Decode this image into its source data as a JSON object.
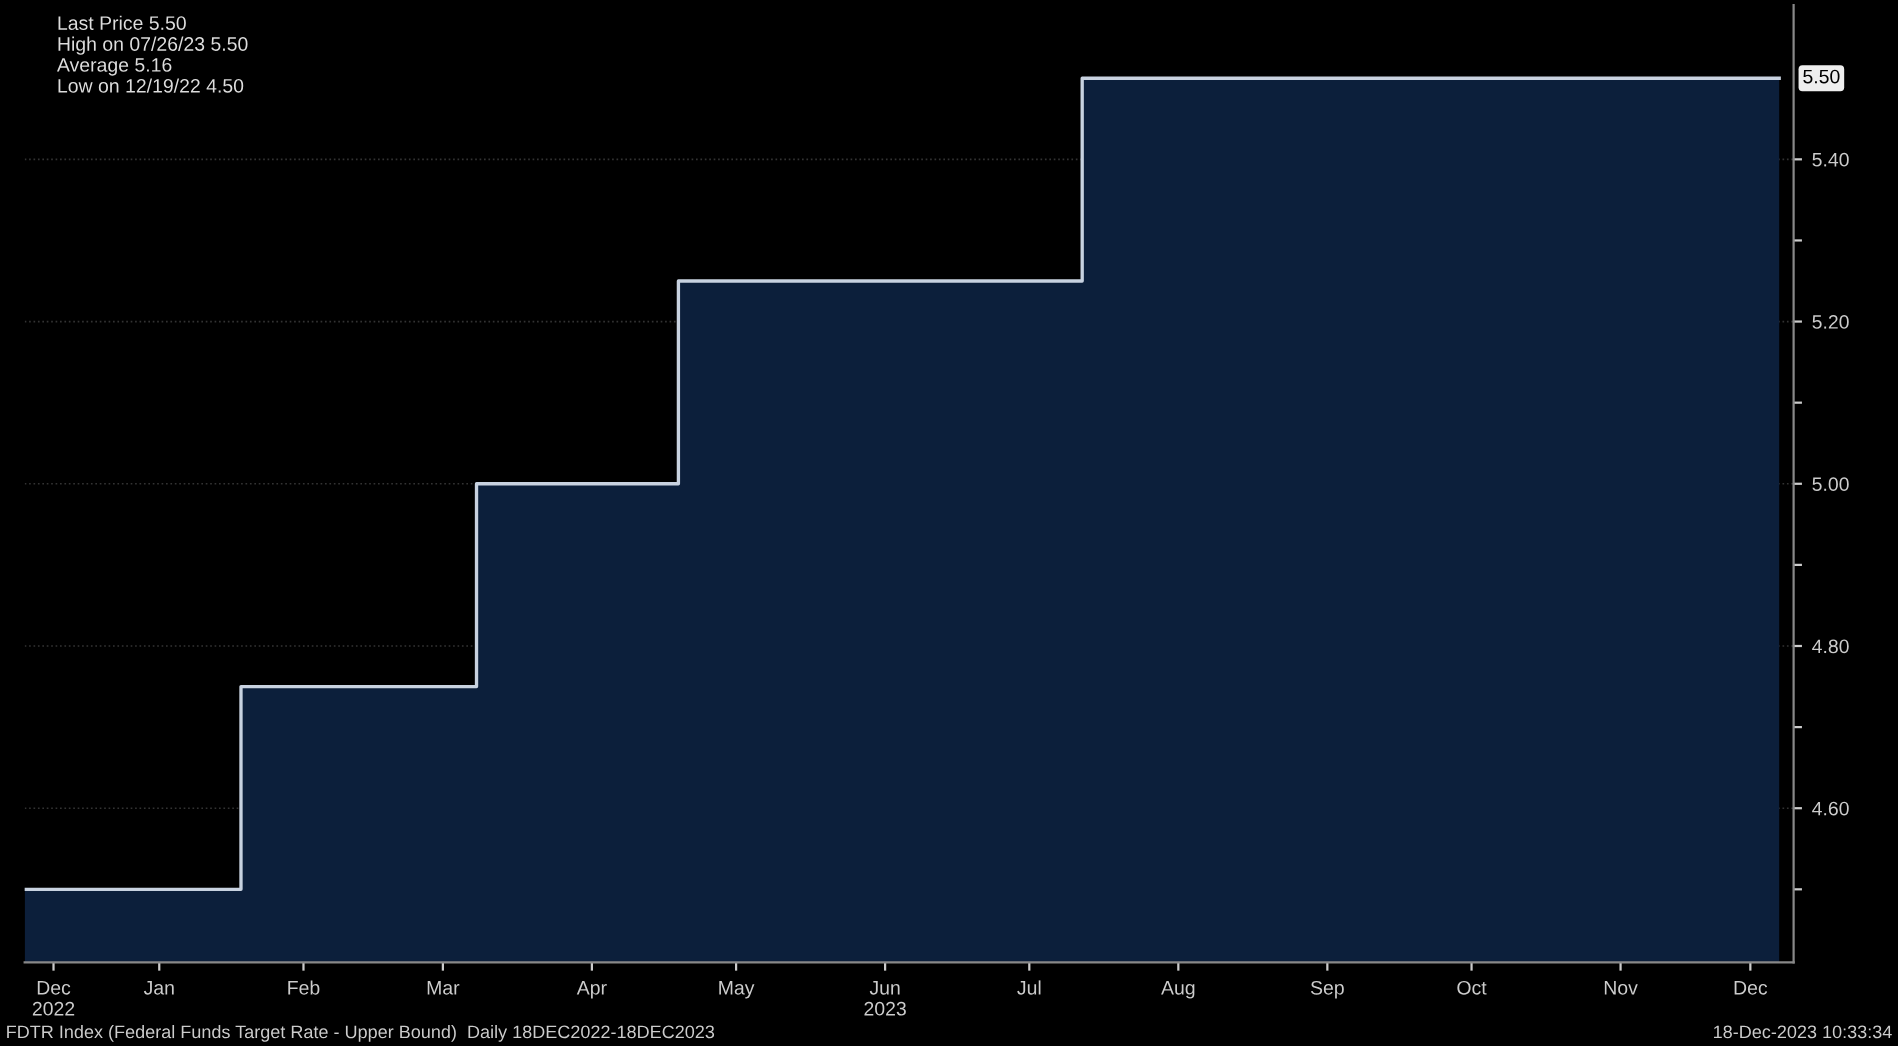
{
  "chart_data": {
    "type": "area",
    "x": [
      "2022-12-18",
      "2023-02-01",
      "2023-03-22",
      "2023-05-03",
      "2023-07-26",
      "2023-12-18"
    ],
    "series": [
      {
        "color": "#0c1f3b",
        "values": [
          4.5,
          4.75,
          5.0,
          5.25,
          5.5,
          5.5
        ]
      },
      {
        "type": "step",
        "color": "#c8d2e0",
        "values": [
          4.5,
          4.75,
          5.0,
          5.25,
          5.5,
          5.5
        ]
      }
    ],
    "xlim": [
      "2022-12-18",
      "2023-12-21"
    ],
    "xticks": [
      {
        "value": "2022-12-24",
        "label": "Dec\n2022"
      },
      {
        "value": "2023-01-15",
        "label": "Jan"
      },
      {
        "value": "2023-02-14",
        "label": "Feb"
      },
      {
        "value": "2023-03-15",
        "label": "Mar"
      },
      {
        "value": "2023-04-15",
        "label": "Apr"
      },
      {
        "value": "2023-05-15",
        "label": "May"
      },
      {
        "value": "2023-06-15",
        "label": "Jun\n2023"
      },
      {
        "value": "2023-07-15",
        "label": "Jul"
      },
      {
        "value": "2023-08-15",
        "label": "Aug"
      },
      {
        "value": "2023-09-15",
        "label": "Sep"
      },
      {
        "value": "2023-10-15",
        "label": "Oct"
      },
      {
        "value": "2023-11-15",
        "label": "Nov"
      },
      {
        "value": "2023-12-12",
        "label": "Dec"
      }
    ],
    "ylim": [
      4.41,
      5.59
    ],
    "yticks": [
      {
        "value": 4.5,
        "label": null
      },
      {
        "value": 4.6,
        "label": "4.60"
      },
      {
        "value": 4.7,
        "label": null
      },
      {
        "value": 4.8,
        "label": "4.80"
      },
      {
        "value": 4.9,
        "label": null
      },
      {
        "value": 5.0,
        "label": "5.00"
      },
      {
        "value": 5.1,
        "label": null
      },
      {
        "value": 5.2,
        "label": "5.20"
      },
      {
        "value": 5.3,
        "label": null
      },
      {
        "value": 5.4,
        "label": "5.40"
      }
    ],
    "grid": "y",
    "annotations": [
      {
        "text": "5.50",
        "x": "2023-12-18",
        "y": 5.5
      },
      "Last Price 5.50",
      "High on 07/26/23 5.50",
      "Average 5.16",
      "Low on 12/19/22 4.50",
      "FDTR Index (Federal Funds Target Rate - Upper Bound)  Daily 18DEC2022-18DEC2023",
      "18-Dec-2023 10:33:34"
    ]
  }
}
